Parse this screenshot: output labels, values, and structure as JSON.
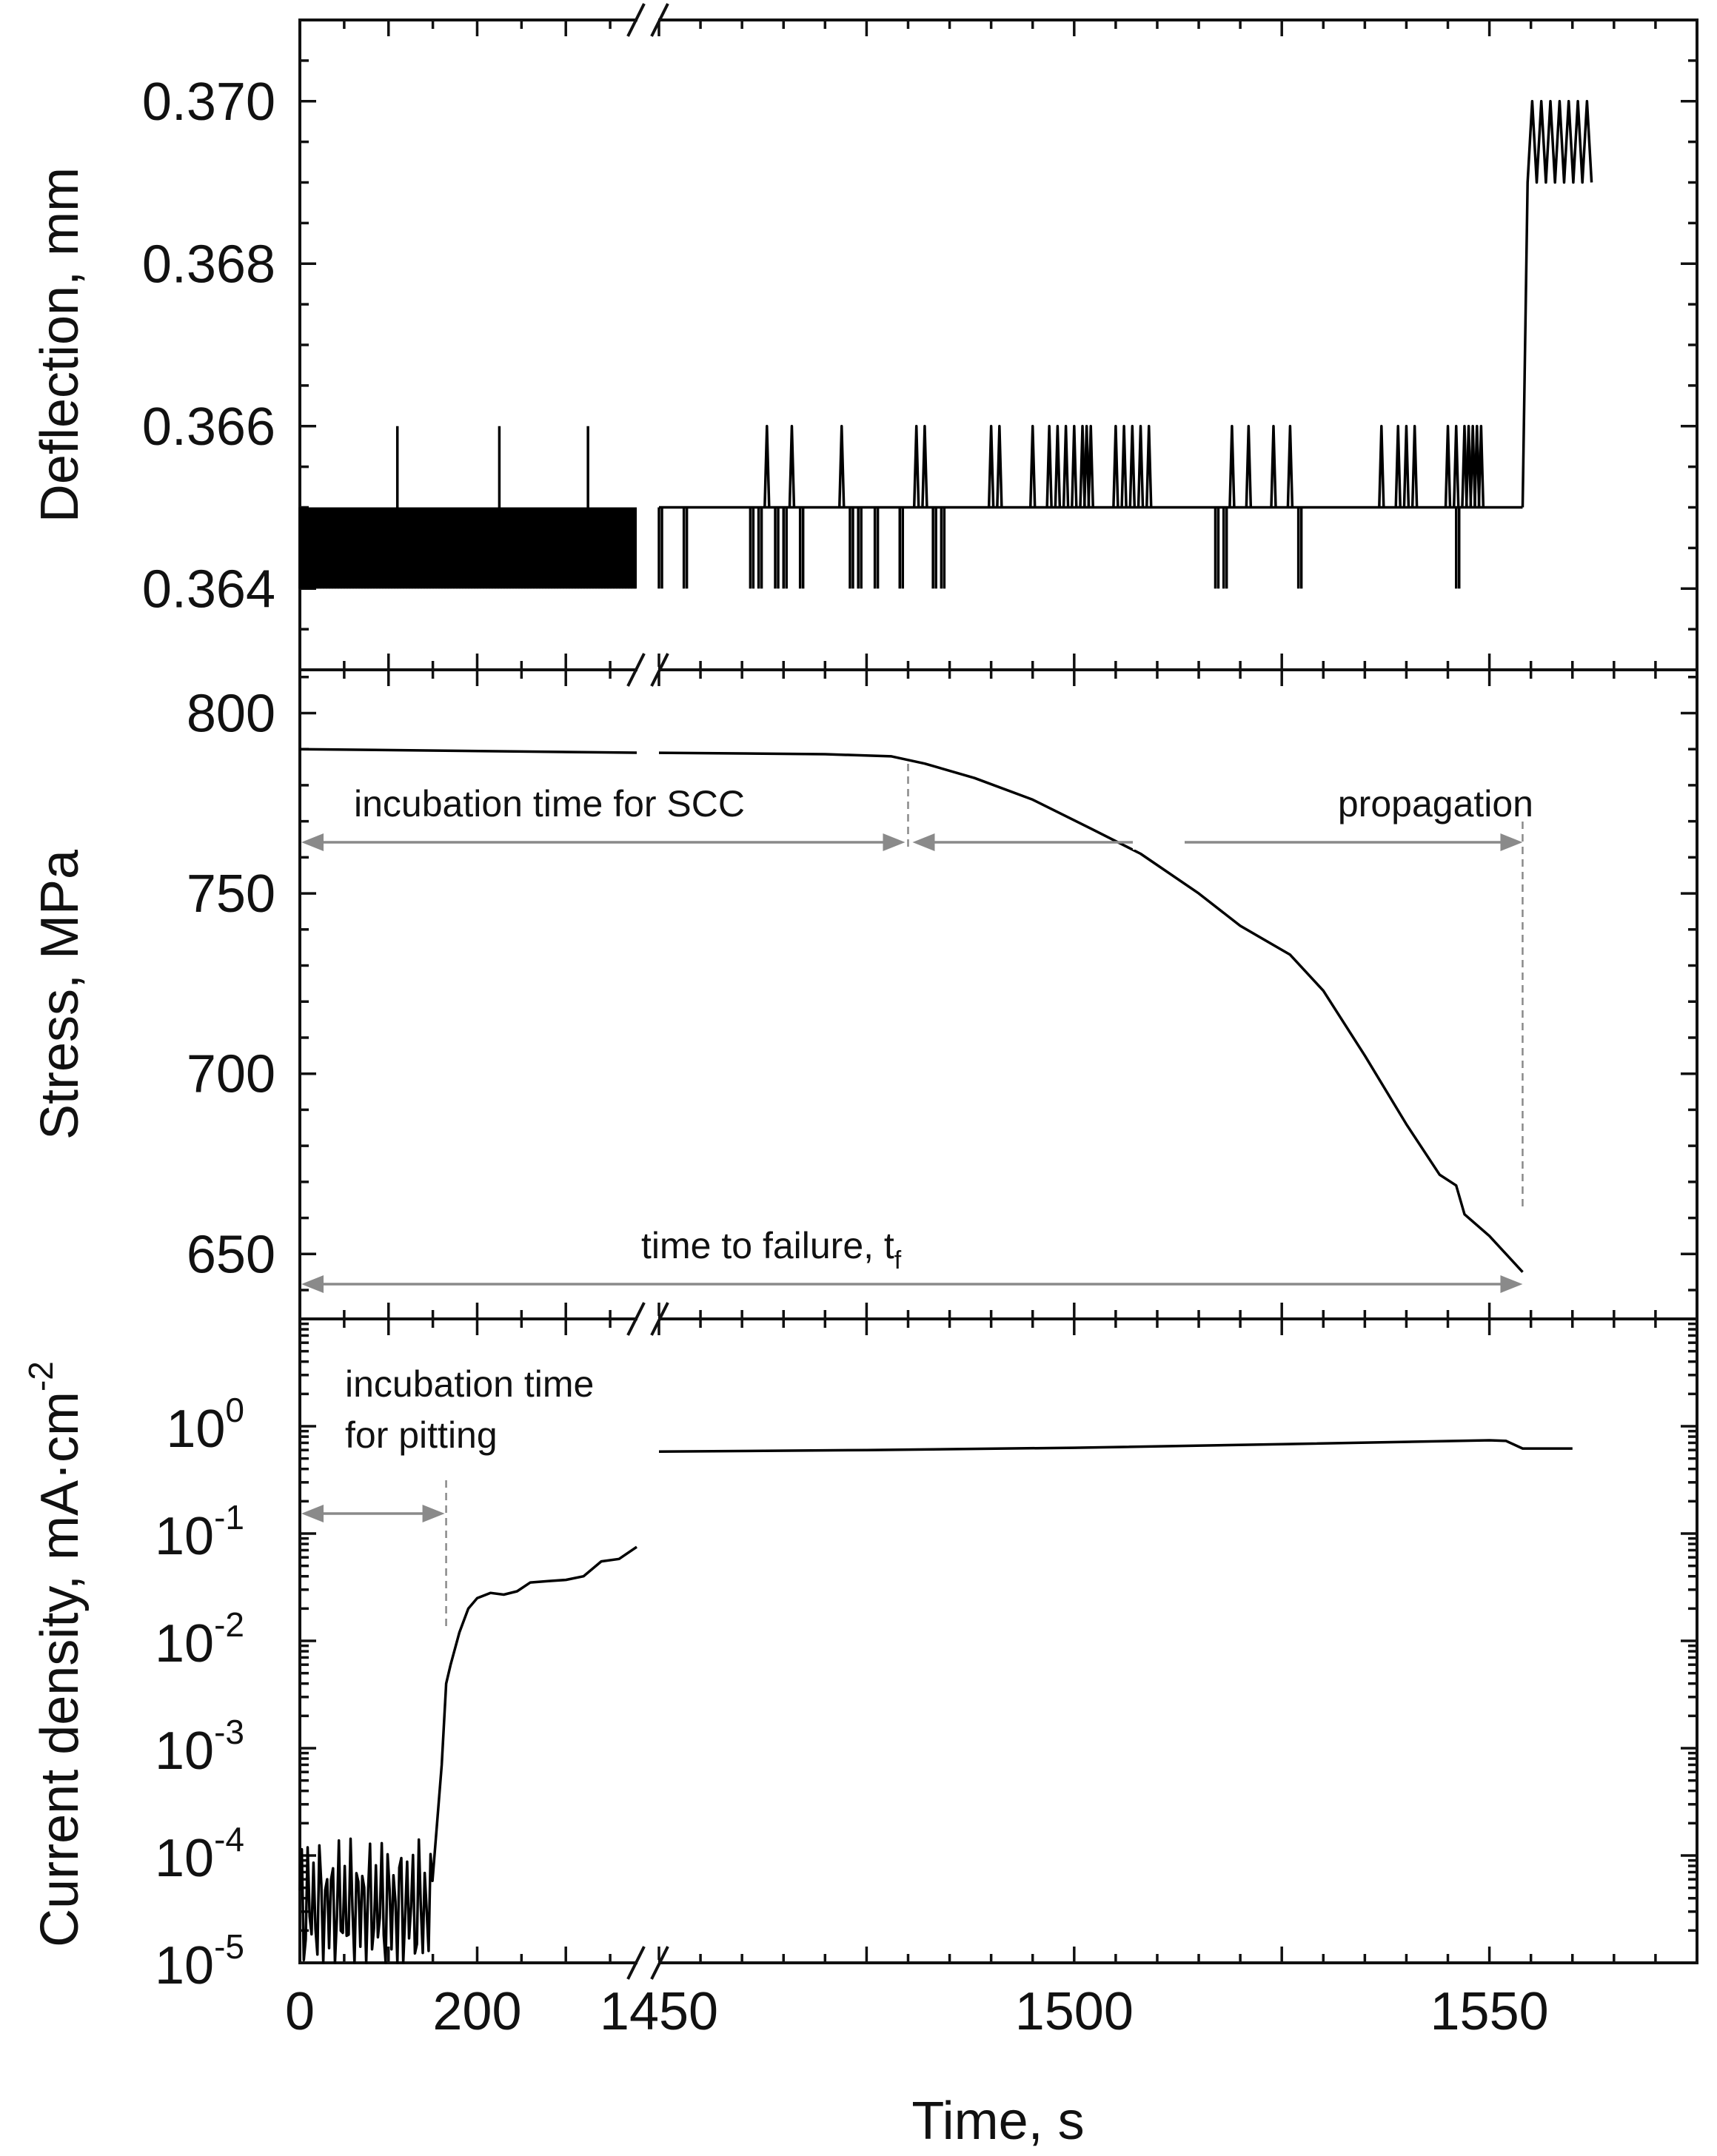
{
  "chart_data": {
    "type": "line",
    "x_axis": {
      "label": "Time, s",
      "break": {
        "segment1_range": [
          0,
          380
        ],
        "segment2_range": [
          1450,
          1575
        ]
      },
      "tick_labels": [
        {
          "value": 0,
          "segment": 1,
          "label": "0"
        },
        {
          "value": 200,
          "segment": 1,
          "label": "200"
        },
        {
          "value": 1450,
          "segment": 2,
          "label": "1450"
        },
        {
          "value": 1500,
          "segment": 2,
          "label": "1500"
        },
        {
          "value": 1550,
          "segment": 2,
          "label": "1550"
        }
      ]
    },
    "panels": [
      {
        "id": "deflection",
        "ylabel": "Deflection, mm",
        "ylim": [
          0.363,
          0.371
        ],
        "yticks": [
          "0.364",
          "0.366",
          "0.368",
          "0.370"
        ],
        "series": [
          {
            "name": "Deflection",
            "description": "baseline 0.365 mm with dense oscillation to 0.364 in segment 1, intermittent spikes, step to 0.369-0.370 mm at ~1554 s",
            "base_value": 0.365,
            "segment1_dense_low": 0.364,
            "segment1_spikes_up": [
              110,
              225,
              325
            ],
            "segment2_spikes_up": [
              1463,
              1466,
              1472,
              1481,
              1482,
              1490,
              1491,
              1495,
              1497,
              1498,
              1499,
              1500,
              1501,
              1501.5,
              1502,
              1505,
              1506,
              1507,
              1508,
              1509,
              1519,
              1521,
              1524,
              1526,
              1537,
              1539,
              1540,
              1541,
              1545,
              1546,
              1547,
              1547.5,
              1548,
              1548.5,
              1549
            ],
            "segment2_spikes_down": [
              1450,
              1453,
              1461,
              1462,
              1464,
              1465,
              1467,
              1473,
              1474,
              1476,
              1479,
              1483,
              1484,
              1517,
              1518,
              1527,
              1546
            ],
            "step_time": 1554,
            "final_values": [
              0.369,
              0.37
            ]
          }
        ]
      },
      {
        "id": "stress",
        "ylabel": "Stress, MPa",
        "ylim": [
          632,
          812
        ],
        "yticks": [
          "650",
          "700",
          "750",
          "800"
        ],
        "series": [
          {
            "name": "Stress",
            "segment1": {
              "x": [
                0,
                380
              ],
              "y": [
                790,
                789
              ]
            },
            "segment2": {
              "x": [
                1450,
                1460,
                1470,
                1478,
                1482,
                1488,
                1495,
                1502,
                1508,
                1515,
                1520,
                1526,
                1530,
                1535,
                1540,
                1544,
                1546,
                1547,
                1550,
                1554
              ],
              "y": [
                789,
                788.8,
                788.6,
                788,
                786,
                782,
                776,
                768,
                761,
                750,
                741,
                733,
                723,
                705,
                686,
                672,
                669,
                661,
                655,
                645
              ]
            }
          }
        ],
        "annotations": {
          "incubation_scc": "incubation time for SCC",
          "propagation": "propagation",
          "time_to_failure": "time to failure, t",
          "time_to_failure_subscript": "f",
          "scc_onset_time": 1480,
          "failure_time": 1554
        }
      },
      {
        "id": "current_density",
        "ylabel": "Current density, mA·cm",
        "ylabel_superscript": "-2",
        "yscale": "log",
        "ylim_log10": [
          -5,
          1
        ],
        "yticks": [
          {
            "base": "10",
            "exp": "-5"
          },
          {
            "base": "10",
            "exp": "-4"
          },
          {
            "base": "10",
            "exp": "-3"
          },
          {
            "base": "10",
            "exp": "-2"
          },
          {
            "base": "10",
            "exp": "-1"
          },
          {
            "base": "10",
            "exp": "0"
          }
        ],
        "series": [
          {
            "name": "Current density",
            "segment1": {
              "x": [
                0,
                15,
                30,
                45,
                60,
                75,
                90,
                105,
                120,
                135,
                150,
                160,
                165,
                170,
                180,
                190,
                200,
                215,
                230,
                245,
                260,
                280,
                300,
                320,
                340,
                360,
                380
              ],
              "y": [
                8e-05,
                3e-05,
                6e-05,
                2e-05,
                9e-05,
                3e-05,
                8e-05,
                2e-05,
                9e-05,
                4e-05,
                2e-05,
                0.0007,
                0.004,
                0.006,
                0.012,
                0.02,
                0.025,
                0.028,
                0.027,
                0.029,
                0.035,
                0.036,
                0.037,
                0.04,
                0.055,
                0.058,
                0.075
              ]
            },
            "segment2": {
              "x": [
                1450,
                1475,
                1500,
                1525,
                1550,
                1552,
                1554,
                1560
              ],
              "y": [
                0.58,
                0.6,
                0.63,
                0.68,
                0.74,
                0.73,
                0.62,
                0.62
              ]
            }
          }
        ],
        "annotations": {
          "incubation_pitting_line1": "incubation time",
          "incubation_pitting_line2": "for pitting",
          "pitting_onset_time": 165
        }
      }
    ]
  }
}
